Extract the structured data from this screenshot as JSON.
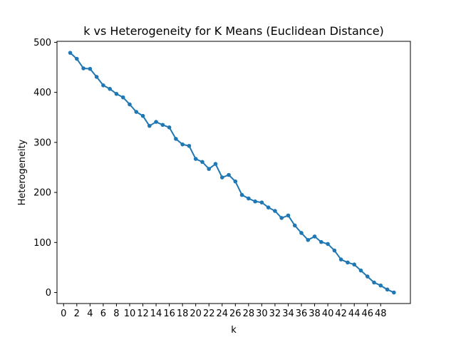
{
  "chart_data": {
    "type": "line",
    "title": "k vs Heterogeneity for K Means (Euclidean Distance)",
    "xlabel": "k",
    "ylabel": "Heterogeneity",
    "xlim": [
      -1,
      52.5
    ],
    "ylim": [
      -22,
      502
    ],
    "xticks": [
      0,
      2,
      4,
      6,
      8,
      10,
      12,
      14,
      16,
      18,
      20,
      22,
      24,
      26,
      28,
      30,
      32,
      34,
      36,
      38,
      40,
      42,
      44,
      46,
      48
    ],
    "yticks": [
      0,
      100,
      200,
      300,
      400,
      500
    ],
    "grid": false,
    "series": [
      {
        "color": "#1f77b4",
        "marker": "circle",
        "x": [
          1,
          2,
          3,
          4,
          5,
          6,
          7,
          8,
          9,
          10,
          11,
          12,
          13,
          14,
          15,
          16,
          17,
          18,
          19,
          20,
          21,
          22,
          23,
          24,
          25,
          26,
          27,
          28,
          29,
          30,
          31,
          32,
          33,
          34,
          35,
          36,
          37,
          38,
          39,
          40,
          41,
          42,
          43,
          44,
          45,
          46,
          47,
          48,
          49,
          50
        ],
        "y": [
          479,
          467,
          448,
          447,
          431,
          414,
          407,
          397,
          390,
          376,
          361,
          353,
          333,
          341,
          335,
          330,
          307,
          296,
          293,
          267,
          261,
          247,
          257,
          230,
          235,
          222,
          195,
          188,
          182,
          180,
          170,
          163,
          149,
          154,
          134,
          119,
          105,
          112,
          101,
          97,
          84,
          66,
          60,
          56,
          44,
          32,
          20,
          14,
          6,
          0
        ]
      }
    ]
  }
}
